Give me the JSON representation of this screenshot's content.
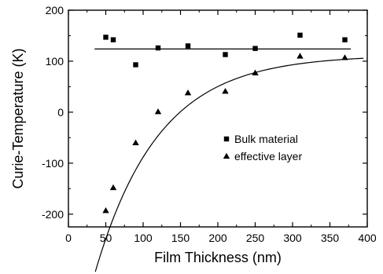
{
  "chart_data": {
    "type": "scatter",
    "xlabel": "Film Thickness (nm)",
    "ylabel": "Curie-Temperature (K)",
    "xlim": [
      0,
      400
    ],
    "ylim": [
      -225,
      200
    ],
    "x_ticks": [
      0,
      50,
      100,
      150,
      200,
      250,
      300,
      350,
      400
    ],
    "y_ticks": [
      -200,
      -100,
      0,
      100,
      200
    ],
    "grid": false,
    "legend": {
      "position": "center-right"
    },
    "series": [
      {
        "name": "Bulk material",
        "marker": "square",
        "points": [
          {
            "x": 50,
            "y": 147
          },
          {
            "x": 60,
            "y": 142
          },
          {
            "x": 90,
            "y": 93
          },
          {
            "x": 120,
            "y": 126
          },
          {
            "x": 160,
            "y": 130
          },
          {
            "x": 210,
            "y": 113
          },
          {
            "x": 250,
            "y": 125
          },
          {
            "x": 310,
            "y": 151
          },
          {
            "x": 370,
            "y": 142
          }
        ],
        "fit": {
          "type": "constant",
          "y": 124,
          "x_range": [
            35,
            378
          ]
        }
      },
      {
        "name": "effective layer",
        "marker": "triangle",
        "points": [
          {
            "x": 50,
            "y": -193
          },
          {
            "x": 60,
            "y": -148
          },
          {
            "x": 90,
            "y": -60
          },
          {
            "x": 120,
            "y": 1
          },
          {
            "x": 160,
            "y": 38
          },
          {
            "x": 210,
            "y": 41
          },
          {
            "x": 250,
            "y": 77
          },
          {
            "x": 310,
            "y": 110
          },
          {
            "x": 370,
            "y": 107
          }
        ],
        "fit": {
          "type": "exponential-saturation",
          "y_inf": 112,
          "amplitude": 430,
          "decay": 85,
          "x0": 35,
          "x_range": [
            36,
            395
          ]
        }
      }
    ]
  }
}
